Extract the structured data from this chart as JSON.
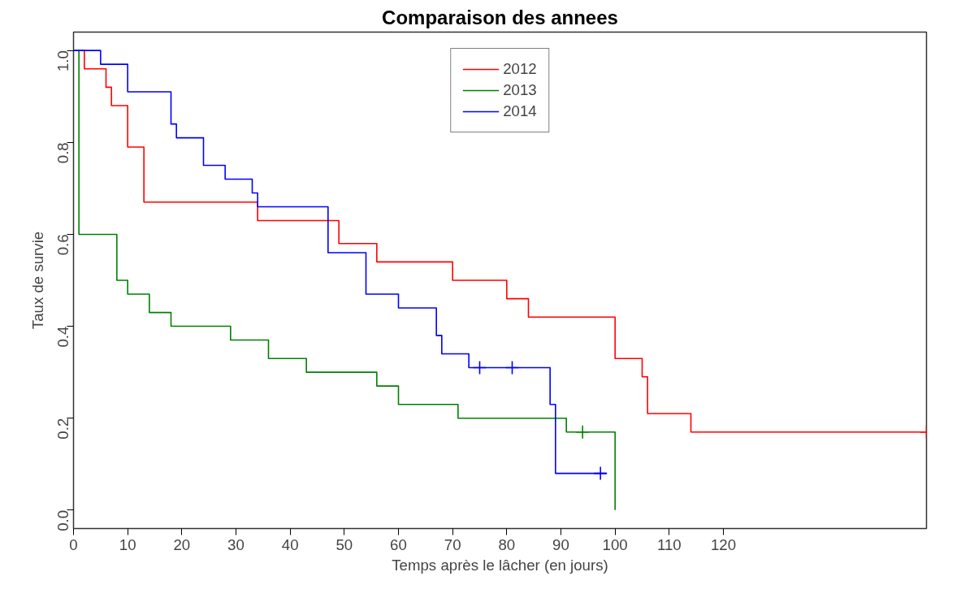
{
  "chart_data": {
    "type": "step",
    "title": "Comparaison des annees",
    "xlabel": "Temps après le lâcher (en jours)",
    "ylabel": "Taux de survie",
    "xlim": [
      0,
      157.5
    ],
    "xticks": [
      0,
      10,
      20,
      30,
      40,
      50,
      60,
      70,
      80,
      90,
      100,
      110,
      120
    ],
    "ylim": [
      -0.04,
      1.04
    ],
    "yticks": [
      {
        "value": 0,
        "label": "0.0"
      },
      0.2,
      0.4,
      0.6,
      0.8,
      {
        "value": 1,
        "label": "1.0"
      }
    ],
    "grid": false,
    "legend": "top",
    "series": [
      {
        "name": "2012",
        "color": "#ff0000",
        "x": [
          0,
          2,
          6,
          7,
          10,
          13,
          34,
          49,
          56,
          70,
          80,
          84,
          100,
          105,
          106,
          114,
          157.5
        ],
        "values": [
          1.0,
          0.96,
          0.92,
          0.88,
          0.79,
          0.67,
          0.63,
          0.58,
          0.54,
          0.5,
          0.46,
          0.42,
          0.33,
          0.29,
          0.21,
          0.17,
          0.17
        ]
      },
      {
        "name": "2013",
        "color": "#008000",
        "x": [
          0,
          1,
          8,
          10,
          14,
          18,
          29,
          36,
          43,
          56,
          60,
          71,
          91,
          100
        ],
        "values": [
          1.0,
          0.6,
          0.5,
          0.47,
          0.43,
          0.4,
          0.37,
          0.33,
          0.3,
          0.27,
          0.23,
          0.2,
          0.17,
          0.0
        ]
      },
      {
        "name": "2014",
        "color": "#0000ff",
        "x": [
          0,
          5,
          10,
          18,
          19,
          24,
          28,
          33,
          34,
          47,
          54,
          60,
          67,
          68,
          73,
          88,
          89,
          98.4
        ],
        "values": [
          1.0,
          0.97,
          0.91,
          0.84,
          0.81,
          0.75,
          0.72,
          0.69,
          0.66,
          0.56,
          0.47,
          0.44,
          0.38,
          0.34,
          0.31,
          0.23,
          0.08,
          0.08
        ]
      },
      {
        "color": "#008000",
        "type": "scatter",
        "marker": "cross",
        "x": [
          94
        ],
        "values": [
          0.17
        ]
      },
      {
        "color": "#0000ff",
        "type": "scatter",
        "marker": "cross",
        "x": [
          75,
          81,
          97.3
        ],
        "values": [
          0.31,
          0.31,
          0.08
        ]
      },
      {
        "color": "#ff0000",
        "type": "scatter",
        "marker": "cross",
        "x": [
          157.5
        ],
        "values": [
          0.17
        ]
      }
    ]
  }
}
